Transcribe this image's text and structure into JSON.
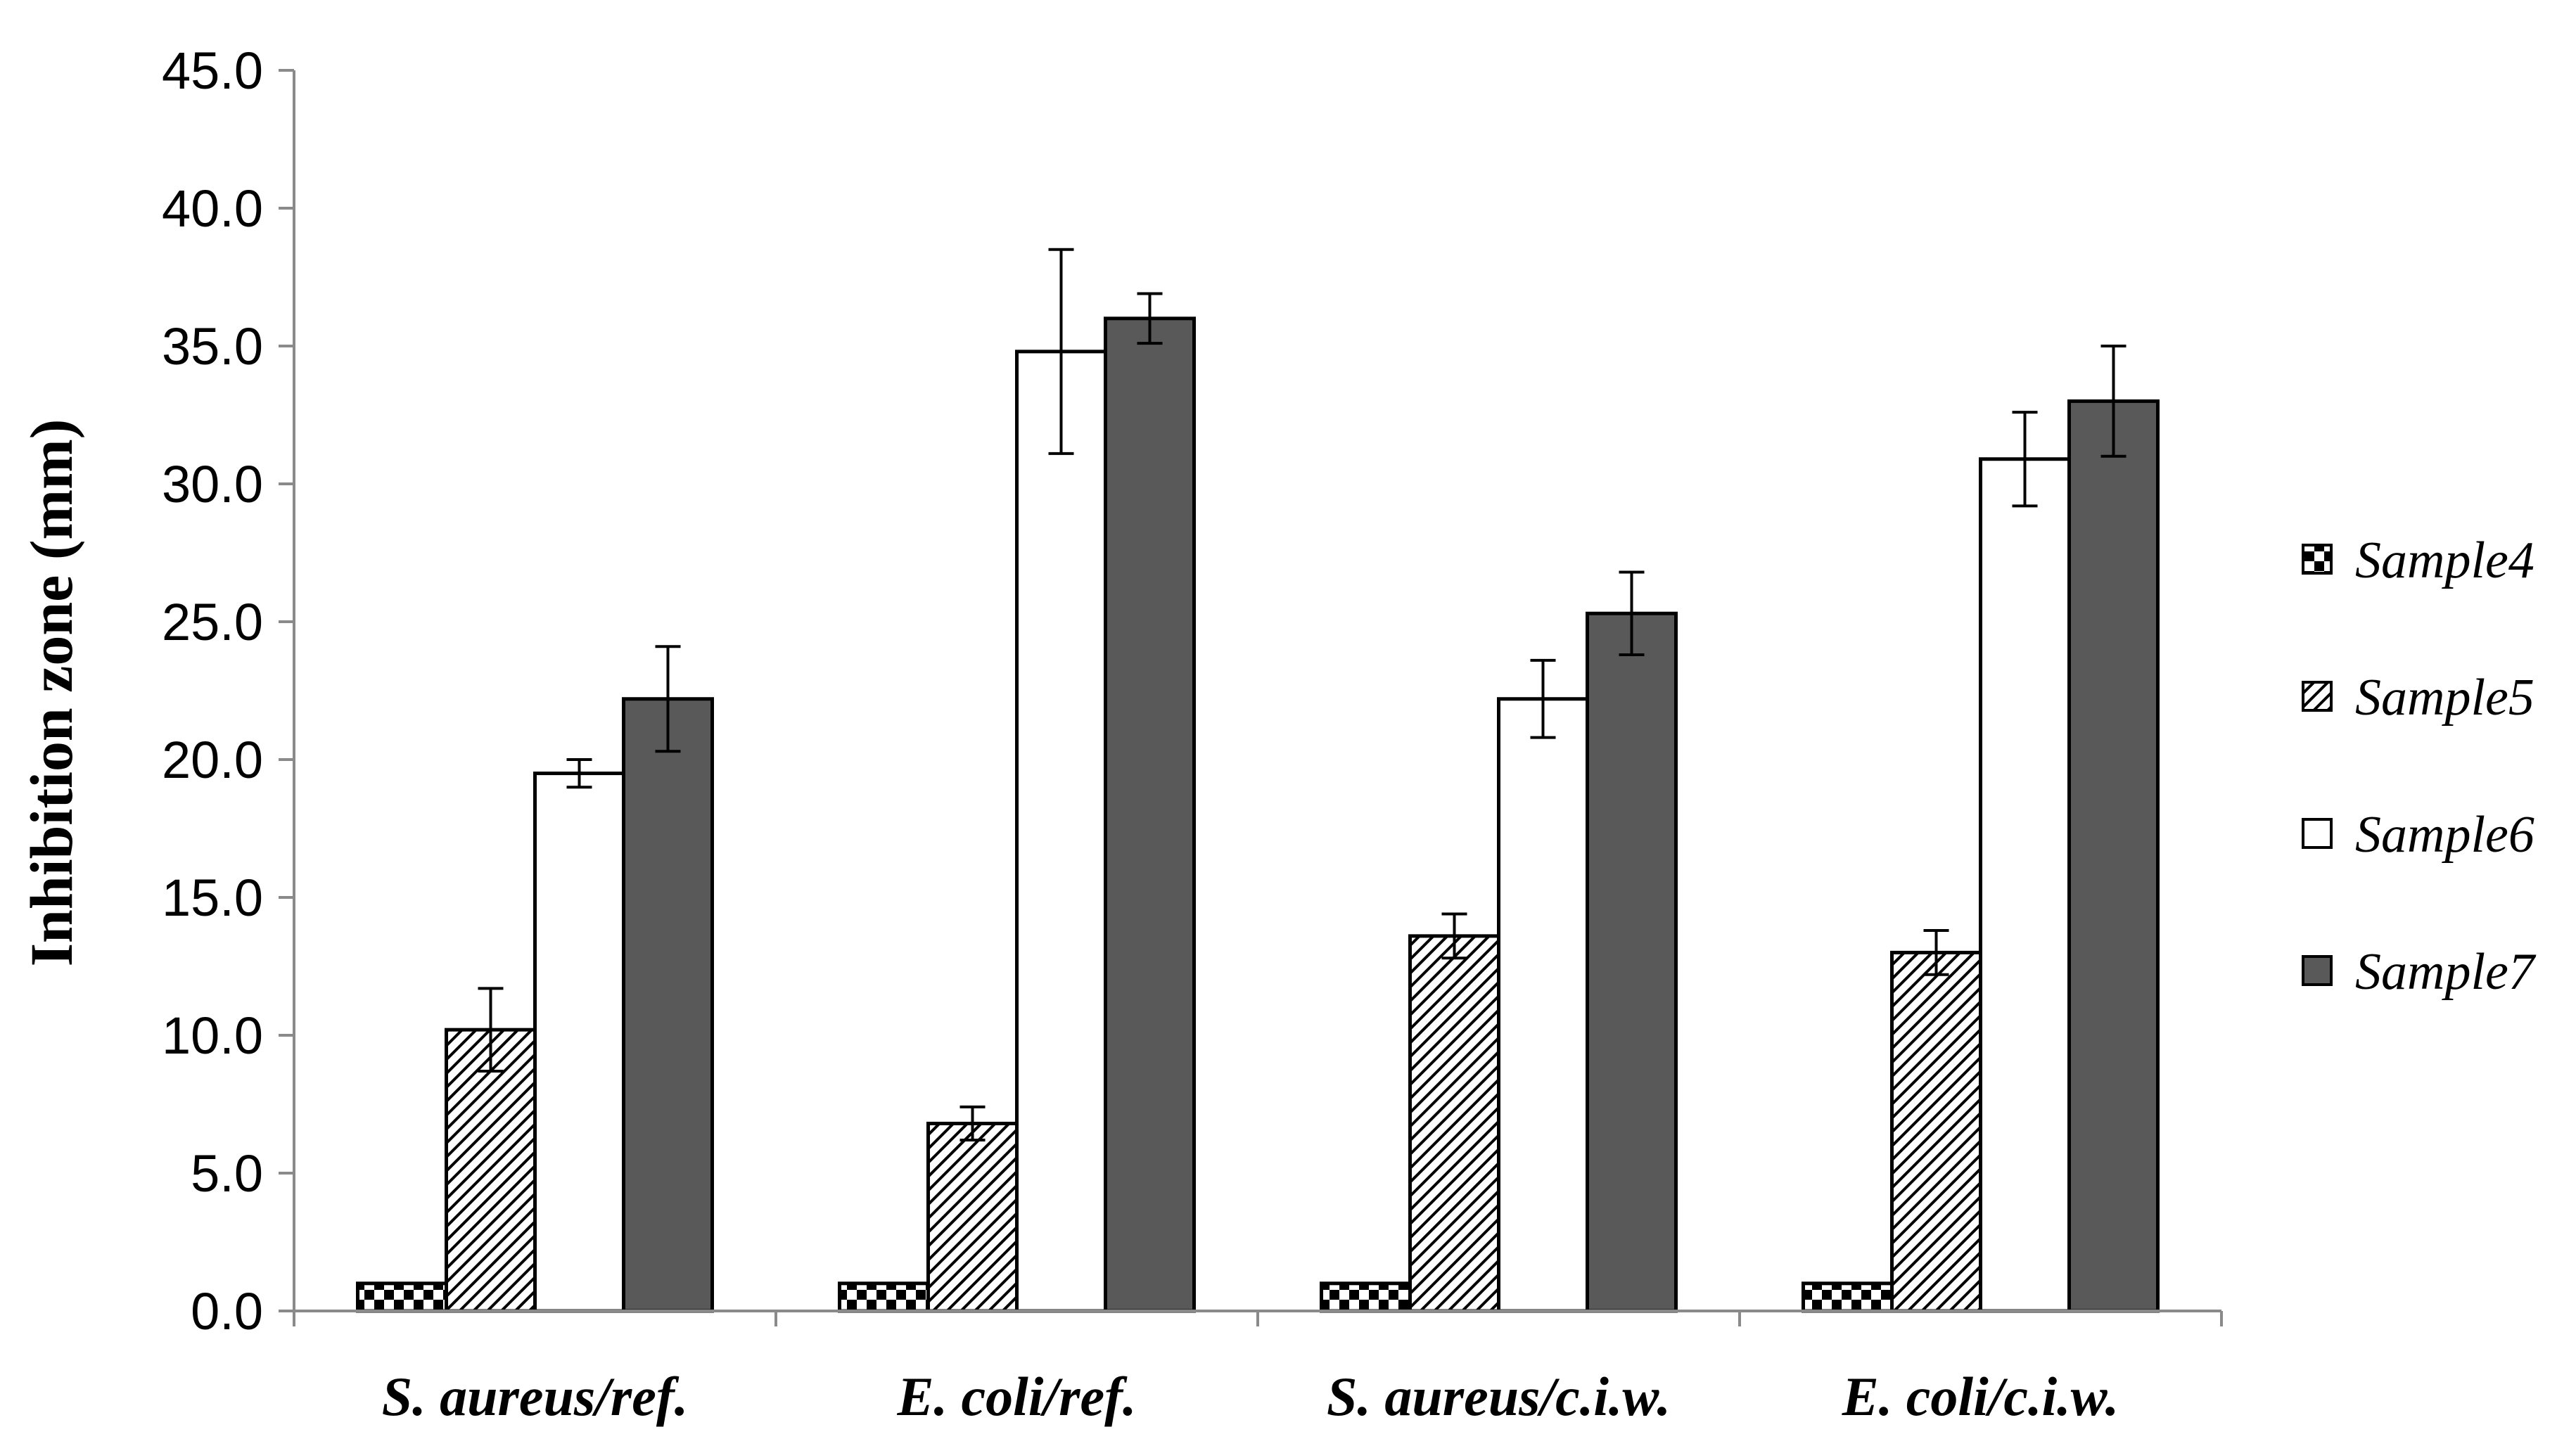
{
  "chart_data": {
    "type": "bar",
    "title": "",
    "xlabel": "",
    "ylabel": "Inhibition zone (mm)",
    "ylim": [
      0,
      45
    ],
    "yticks": [
      "0.0",
      "5.0",
      "10.0",
      "15.0",
      "20.0",
      "25.0",
      "30.0",
      "35.0",
      "40.0",
      "45.0"
    ],
    "categories": [
      "S. aureus/ref.",
      "E. coli/ref.",
      "S. aureus/c.i.w.",
      "E. coli/c.i.w."
    ],
    "series": [
      {
        "name": "Sample4",
        "pattern": "checker",
        "values": [
          1.0,
          1.0,
          1.0,
          1.0
        ],
        "errors": [
          0,
          0,
          0,
          0
        ]
      },
      {
        "name": "Sample5",
        "pattern": "hatch",
        "values": [
          10.2,
          6.8,
          13.6,
          13.0
        ],
        "errors": [
          1.5,
          0.6,
          0.8,
          0.8
        ]
      },
      {
        "name": "Sample6",
        "pattern": "white",
        "values": [
          19.5,
          34.8,
          22.2,
          30.9
        ],
        "errors": [
          0.5,
          3.7,
          1.4,
          1.7
        ]
      },
      {
        "name": "Sample7",
        "pattern": "dark",
        "values": [
          22.2,
          36.0,
          25.3,
          33.0
        ],
        "errors": [
          1.9,
          0.9,
          1.5,
          2.0
        ]
      }
    ],
    "colors": {
      "dark": "#595959",
      "outline": "#000000",
      "white": "#ffffff"
    },
    "grid": false,
    "legend_position": "right"
  }
}
